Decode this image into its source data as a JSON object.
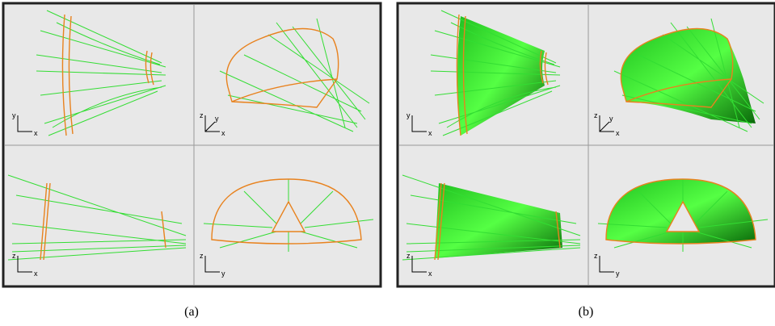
{
  "panels": [
    {
      "caption": "(a)",
      "views": [
        {
          "axes": [
            "y",
            "x"
          ]
        },
        {
          "axes": [
            "z",
            "y",
            "x"
          ]
        },
        {
          "axes": [
            "z",
            "x"
          ]
        },
        {
          "axes": [
            "z",
            "y"
          ]
        }
      ]
    },
    {
      "caption": "(b)",
      "views": [
        {
          "axes": [
            "y",
            "x"
          ]
        },
        {
          "axes": [
            "z",
            "y",
            "x"
          ]
        },
        {
          "axes": [
            "z",
            "x"
          ]
        },
        {
          "axes": [
            "z",
            "y"
          ]
        }
      ]
    }
  ]
}
